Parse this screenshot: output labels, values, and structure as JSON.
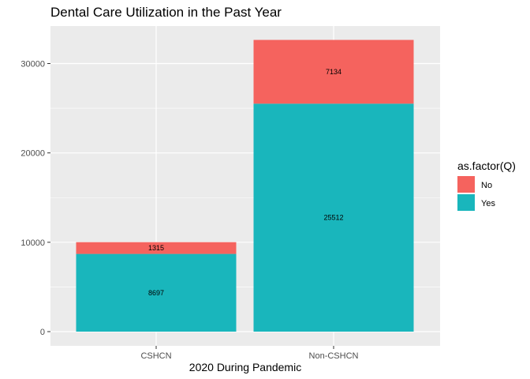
{
  "chart_data": {
    "type": "bar",
    "stacked": true,
    "title": "Dental Care Utilization in the Past Year",
    "xlabel": "2020 During Pandemic",
    "ylabel": "",
    "categories": [
      "CSHCN",
      "Non-CSHCN"
    ],
    "series": [
      {
        "name": "Yes",
        "values": [
          8697,
          25512
        ],
        "color": "#19B6BC"
      },
      {
        "name": "No",
        "values": [
          1315,
          7134
        ],
        "color": "#F5635E"
      }
    ],
    "ylim": [
      0,
      32646
    ],
    "yticks": [
      0,
      10000,
      20000,
      30000
    ],
    "ytick_labels": [
      "0",
      "10000",
      "20000",
      "30000"
    ],
    "grid": true,
    "legend": {
      "title": "as.factor(Q)",
      "placement": "right",
      "entries": [
        {
          "label": "No",
          "color": "#F5635E"
        },
        {
          "label": "Yes",
          "color": "#19B6BC"
        }
      ]
    }
  }
}
